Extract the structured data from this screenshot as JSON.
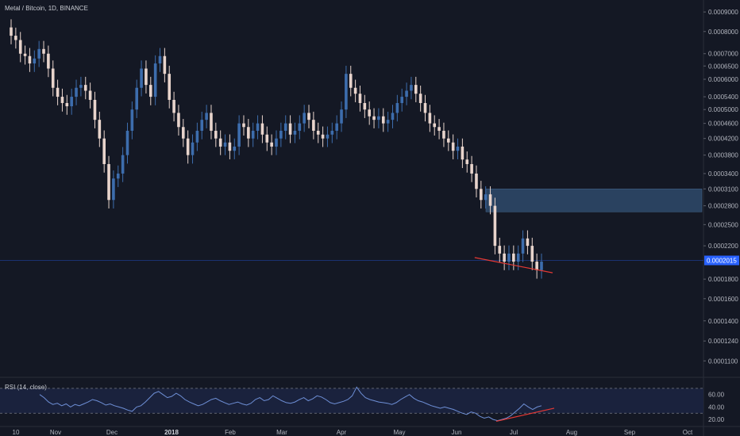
{
  "chart_data": {
    "type": "candlestick",
    "title": "Metal / Bitcoin, 1D, BINANCE",
    "price_axis": {
      "scale": "log",
      "ticks": [
        "0.0009000",
        "0.0008000",
        "0.0007000",
        "0.0006500",
        "0.0006000",
        "0.0005400",
        "0.0005000",
        "0.0004600",
        "0.0004200",
        "0.0003800",
        "0.0003400",
        "0.0003100",
        "0.0002800",
        "0.0002500",
        "0.0002200",
        "0.0002015",
        "0.0001800",
        "0.0001600",
        "0.0001400",
        "0.0001240",
        "0.0001100"
      ],
      "current_price": "0.0002015"
    },
    "time_axis": {
      "ticks": [
        "10",
        "Nov",
        "Dec",
        "2018",
        "Feb",
        "Mar",
        "Apr",
        "May",
        "Jun",
        "Jul",
        "Aug",
        "Sep",
        "Oct"
      ],
      "bold_tick": "2018"
    },
    "series_close": [
      0.00078,
      0.00076,
      0.0007,
      0.00069,
      0.00066,
      0.00068,
      0.00072,
      0.0007,
      0.00064,
      0.00057,
      0.00054,
      0.00052,
      0.00051,
      0.00054,
      0.00057,
      0.00058,
      0.00056,
      0.00053,
      0.00047,
      0.00042,
      0.00036,
      0.00029,
      0.00033,
      0.00034,
      0.00038,
      0.00044,
      0.0005,
      0.00057,
      0.00064,
      0.00058,
      0.00054,
      0.00066,
      0.00069,
      0.00062,
      0.00053,
      0.00049,
      0.00045,
      0.00042,
      0.00038,
      0.00041,
      0.00044,
      0.00047,
      0.00049,
      0.00044,
      0.00042,
      0.0004,
      0.00041,
      0.00039,
      0.0004,
      0.00046,
      0.00045,
      0.00042,
      0.00044,
      0.00046,
      0.00043,
      0.00041,
      0.0004,
      0.00042,
      0.00044,
      0.00046,
      0.00043,
      0.00044,
      0.00046,
      0.00049,
      0.00047,
      0.00044,
      0.00043,
      0.00042,
      0.00043,
      0.00044,
      0.00046,
      0.0005,
      0.00062,
      0.00057,
      0.00055,
      0.00052,
      0.0005,
      0.00048,
      0.00047,
      0.00048,
      0.00046,
      0.00047,
      0.00049,
      0.00052,
      0.00054,
      0.00056,
      0.00058,
      0.00055,
      0.00052,
      0.00049,
      0.00046,
      0.00045,
      0.00044,
      0.00042,
      0.00041,
      0.00039,
      0.0004,
      0.00037,
      0.00036,
      0.00034,
      0.00031,
      0.00029,
      0.0003,
      0.00028,
      0.00022,
      0.00021,
      0.0002,
      0.00021,
      0.0002,
      0.00021,
      0.00023,
      0.00022,
      0.0002,
      0.00019,
      0.0002
    ],
    "rsi": {
      "label": "RSI (14, close)",
      "levels": [
        "60.00",
        "40.00",
        "20.00"
      ],
      "upper_band": 70,
      "lower_band": 30,
      "values": [
        60,
        55,
        48,
        44,
        46,
        42,
        45,
        40,
        44,
        42,
        45,
        48,
        52,
        50,
        47,
        43,
        45,
        42,
        40,
        38,
        35,
        33,
        40,
        42,
        48,
        55,
        62,
        65,
        60,
        55,
        57,
        62,
        58,
        52,
        48,
        45,
        42,
        44,
        48,
        52,
        54,
        50,
        47,
        44,
        46,
        48,
        45,
        43,
        46,
        52,
        55,
        50,
        52,
        58,
        54,
        50,
        47,
        46,
        48,
        52,
        55,
        50,
        53,
        58,
        56,
        52,
        47,
        45,
        47,
        49,
        52,
        58,
        72,
        62,
        55,
        52,
        50,
        48,
        47,
        46,
        44,
        47,
        52,
        56,
        60,
        54,
        50,
        48,
        45,
        42,
        40,
        38,
        40,
        38,
        36,
        33,
        30,
        28,
        32,
        30,
        25,
        22,
        24,
        20,
        18,
        20,
        22,
        26,
        32,
        38,
        45,
        40,
        36,
        40,
        42
      ]
    },
    "annotations": [
      {
        "type": "zone",
        "label": "resistance box",
        "price_from": 0.00027,
        "price_to": 0.00031
      },
      {
        "type": "trendline",
        "color": "#e53935",
        "label": "price falling lows"
      },
      {
        "type": "trendline",
        "color": "#e53935",
        "label": "RSI rising lows"
      }
    ],
    "colors": {
      "bull": "#3d6dad",
      "bear": "#e8d4cc",
      "rsi": "#6e8fd6",
      "zone": "#2e4a6b",
      "trend": "#e53935",
      "current_tag": "#2962ff"
    }
  }
}
